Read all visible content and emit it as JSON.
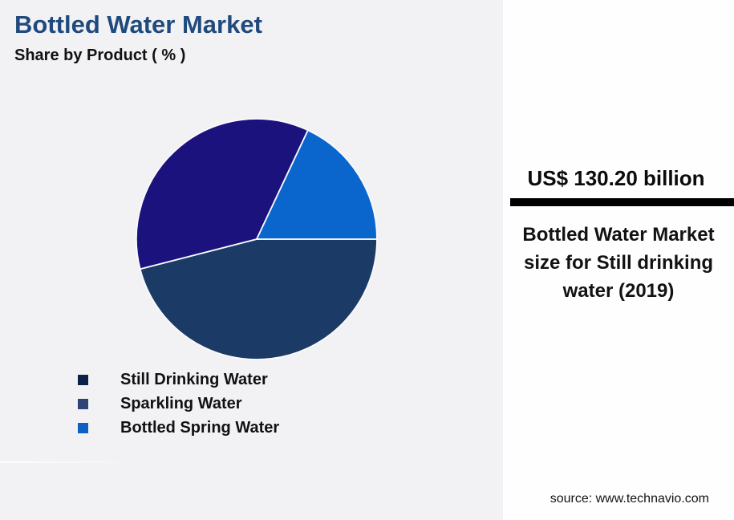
{
  "header": {
    "title": "Bottled Water Market",
    "subtitle": "Share by Product ( % )"
  },
  "chart_data": {
    "type": "pie",
    "title": "Bottled Water Market",
    "subtitle": "Share by Product ( % )",
    "unit": "%",
    "categories": [
      "Still Drinking Water",
      "Sparkling Water",
      "Bottled Spring Water"
    ],
    "values": [
      46,
      36,
      18
    ],
    "slice_colors": [
      "#1B3A66",
      "#1B127E",
      "#0A66CC"
    ],
    "legend_colors": [
      "#0C2149",
      "#2F4374",
      "#0C62C4"
    ],
    "legend_position": "bottom-left",
    "start_angle_deg": 0,
    "direction": "clockwise",
    "data_labels_shown": false
  },
  "side_panel": {
    "headline_value": "US$ 130.20 billion",
    "description": "Bottled Water Market size for Still drinking water (2019)",
    "source": "source: www.technavio.com"
  },
  "colors": {
    "background": "#F2F2F4",
    "panel_background": "#FEFEFE",
    "title_text": "#1F4A7D",
    "divider_bar": "#000000",
    "slice_stroke": "#FAFAFC"
  }
}
